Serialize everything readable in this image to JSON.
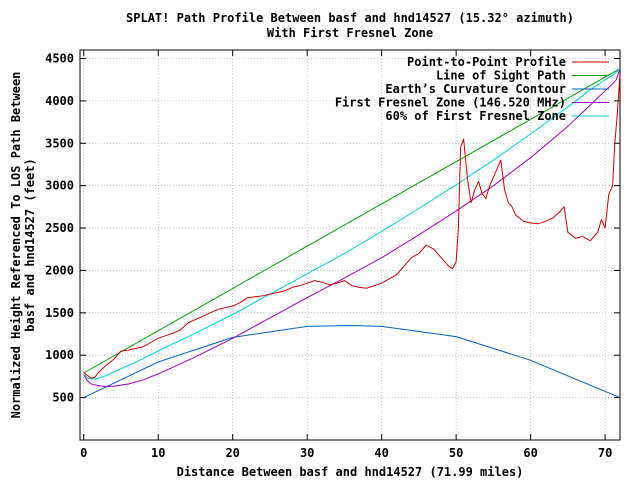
{
  "chart_data": {
    "type": "line",
    "title": "SPLAT! Path Profile Between basf and hnd14527 (15.32° azimuth)",
    "subtitle": "With First Fresnel Zone",
    "xlabel": "Distance Between basf and hnd14527 (71.99 miles)",
    "ylabel": "Normalized Height Referenced To LOS Path Between basf and hnd14527 (feet)",
    "ylabel_lines": [
      "Normalized Height Referenced To LOS Path Between",
      "basf and hnd14527 (feet)"
    ],
    "xlim": [
      -0.5,
      72
    ],
    "ylim": [
      0,
      4600
    ],
    "xticks": [
      0,
      10,
      20,
      30,
      40,
      50,
      60,
      70
    ],
    "yticks": [
      500,
      1000,
      1500,
      2000,
      2500,
      3000,
      3500,
      4000,
      4500
    ],
    "grid": true,
    "legend_position": "top-right",
    "series": [
      {
        "name": "Point-to-Point Profile",
        "color": "#cc0000",
        "x": [
          0,
          0.5,
          1,
          1.5,
          2,
          2.5,
          3,
          4,
          5,
          6,
          7,
          8,
          9,
          10,
          11,
          12,
          13,
          14,
          15,
          16,
          17,
          18,
          19,
          20,
          21,
          22,
          23,
          24,
          25,
          26,
          27,
          28,
          29,
          30,
          31,
          32,
          33,
          34,
          35,
          36,
          37,
          38,
          39,
          40,
          41,
          42,
          43,
          44,
          45,
          46,
          47,
          48,
          49,
          49.5,
          50,
          50.3,
          50.6,
          51,
          51.5,
          52,
          52.5,
          53,
          53.5,
          54,
          54.5,
          55,
          55.5,
          56,
          56.5,
          57,
          57.5,
          58,
          58.5,
          59,
          60,
          61,
          62,
          63,
          64,
          64.5,
          65,
          66,
          67,
          68,
          69,
          69.5,
          70,
          70.5,
          71,
          71.3,
          71.6,
          71.99
        ],
        "values": [
          800,
          760,
          730,
          740,
          800,
          840,
          880,
          950,
          1050,
          1060,
          1080,
          1100,
          1150,
          1200,
          1230,
          1260,
          1300,
          1380,
          1420,
          1460,
          1500,
          1540,
          1560,
          1580,
          1620,
          1680,
          1690,
          1700,
          1720,
          1740,
          1760,
          1800,
          1820,
          1850,
          1880,
          1860,
          1830,
          1850,
          1880,
          1820,
          1800,
          1790,
          1820,
          1850,
          1900,
          1950,
          2050,
          2150,
          2200,
          2300,
          2250,
          2150,
          2050,
          2020,
          2100,
          2500,
          3450,
          3550,
          3100,
          2800,
          2950,
          3050,
          2900,
          2850,
          3000,
          3100,
          3200,
          3300,
          2950,
          2800,
          2750,
          2650,
          2620,
          2580,
          2560,
          2550,
          2580,
          2620,
          2700,
          2750,
          2450,
          2380,
          2400,
          2350,
          2450,
          2600,
          2500,
          2900,
          3000,
          3500,
          3800,
          4300
        ]
      },
      {
        "name": "Line of Sight Path",
        "color": "#00a000",
        "x": [
          0,
          71.99
        ],
        "values": [
          790,
          4380
        ]
      },
      {
        "name": "Earth’s Curvature Contour",
        "color": "#0060c0",
        "x": [
          0,
          10,
          20,
          30,
          36,
          40,
          50,
          60,
          71.99
        ],
        "values": [
          500,
          920,
          1210,
          1340,
          1350,
          1340,
          1220,
          940,
          500
        ]
      },
      {
        "name": "First Fresnel Zone (146.520 MHz)",
        "color": "#a000c0",
        "x": [
          0,
          0.5,
          1,
          2,
          3,
          4,
          6,
          8,
          10,
          15,
          20,
          25,
          30,
          35,
          40,
          45,
          50,
          55,
          60,
          65,
          68,
          70,
          71,
          71.5,
          71.99
        ],
        "values": [
          770,
          700,
          660,
          640,
          630,
          635,
          660,
          710,
          780,
          980,
          1200,
          1440,
          1680,
          1910,
          2150,
          2420,
          2700,
          3000,
          3330,
          3700,
          3950,
          4120,
          4200,
          4250,
          4380
        ]
      },
      {
        "name": "60% of First Fresnel Zone",
        "color": "#00d0d0",
        "x": [
          0,
          0.5,
          1,
          1.5,
          2,
          3,
          4,
          6,
          8,
          10,
          15,
          20,
          25,
          30,
          35,
          40,
          45,
          50,
          55,
          60,
          65,
          68,
          70,
          71,
          71.5,
          71.99
        ],
        "values": [
          780,
          730,
          720,
          720,
          730,
          760,
          800,
          880,
          960,
          1050,
          1260,
          1480,
          1720,
          1960,
          2200,
          2460,
          2730,
          3010,
          3300,
          3610,
          3930,
          4130,
          4250,
          4300,
          4340,
          4380
        ]
      }
    ]
  }
}
